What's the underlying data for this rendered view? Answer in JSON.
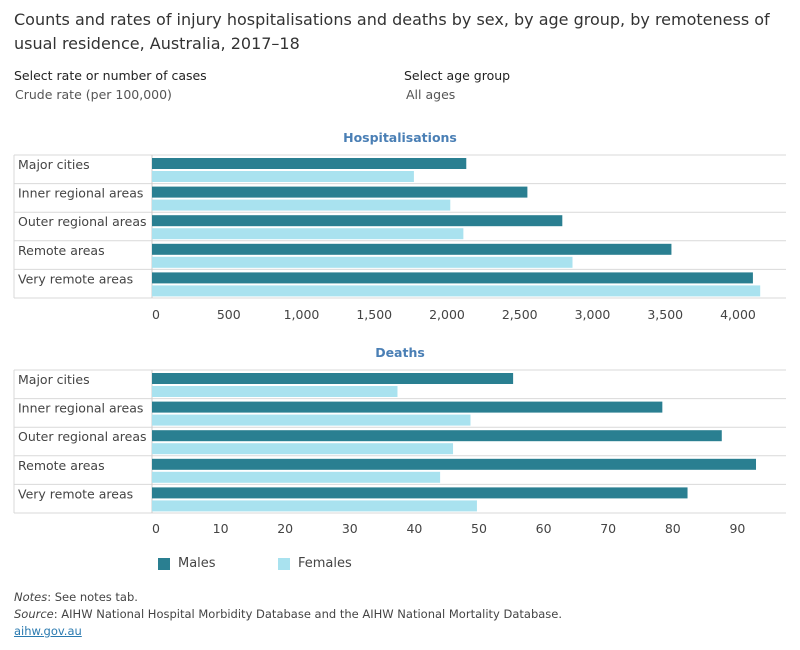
{
  "title": "Counts and rates of injury hospitalisations and deaths by sex, by age group, by remoteness of usual residence, Australia, 2017–18",
  "controls": {
    "rate": {
      "label": "Select rate or number of cases",
      "value": "Crude rate (per 100,000)"
    },
    "age": {
      "label": "Select age group",
      "value": "All ages"
    }
  },
  "legend": {
    "males": {
      "label": "Males",
      "color": "#2a7f91"
    },
    "females": {
      "label": "Females",
      "color": "#a9e2ef"
    }
  },
  "notes": {
    "prefix": "Notes",
    "text": ": See notes tab."
  },
  "source": {
    "prefix": "Source",
    "text": ": AIHW National Hospital Morbidity Database and the AIHW National Mortality Database."
  },
  "link_text": "aihw.gov.au",
  "chart_data": [
    {
      "type": "bar",
      "orientation": "horizontal",
      "title": "Hospitalisations",
      "categories": [
        "Major cities",
        "Inner regional areas",
        "Outer regional areas",
        "Remote areas",
        "Very remote areas"
      ],
      "series": [
        {
          "name": "Males",
          "values": [
            2160,
            2580,
            2820,
            3570,
            4130
          ]
        },
        {
          "name": "Females",
          "values": [
            1800,
            2050,
            2140,
            2890,
            4180
          ]
        }
      ],
      "xlim": [
        0,
        4200
      ],
      "ticks": [
        0,
        500,
        1000,
        1500,
        2000,
        2500,
        3000,
        3500,
        4000
      ],
      "tick_labels": [
        "0",
        "500",
        "1,000",
        "1,500",
        "2,000",
        "2,500",
        "3,000",
        "3,500",
        "4,000"
      ]
    },
    {
      "type": "bar",
      "orientation": "horizontal",
      "title": "Deaths",
      "categories": [
        "Major cities",
        "Inner regional areas",
        "Outer regional areas",
        "Remote areas",
        "Very remote areas"
      ],
      "series": [
        {
          "name": "Males",
          "values": [
            55.9,
            79.0,
            88.2,
            93.5,
            82.9
          ]
        },
        {
          "name": "Females",
          "values": [
            38.0,
            49.3,
            46.6,
            44.6,
            50.3
          ]
        }
      ],
      "xlim": [
        0,
        95
      ],
      "ticks": [
        0,
        10,
        20,
        30,
        40,
        50,
        60,
        70,
        80,
        90
      ],
      "tick_labels": [
        "0",
        "10",
        "20",
        "30",
        "40",
        "50",
        "60",
        "70",
        "80",
        "90"
      ]
    }
  ]
}
